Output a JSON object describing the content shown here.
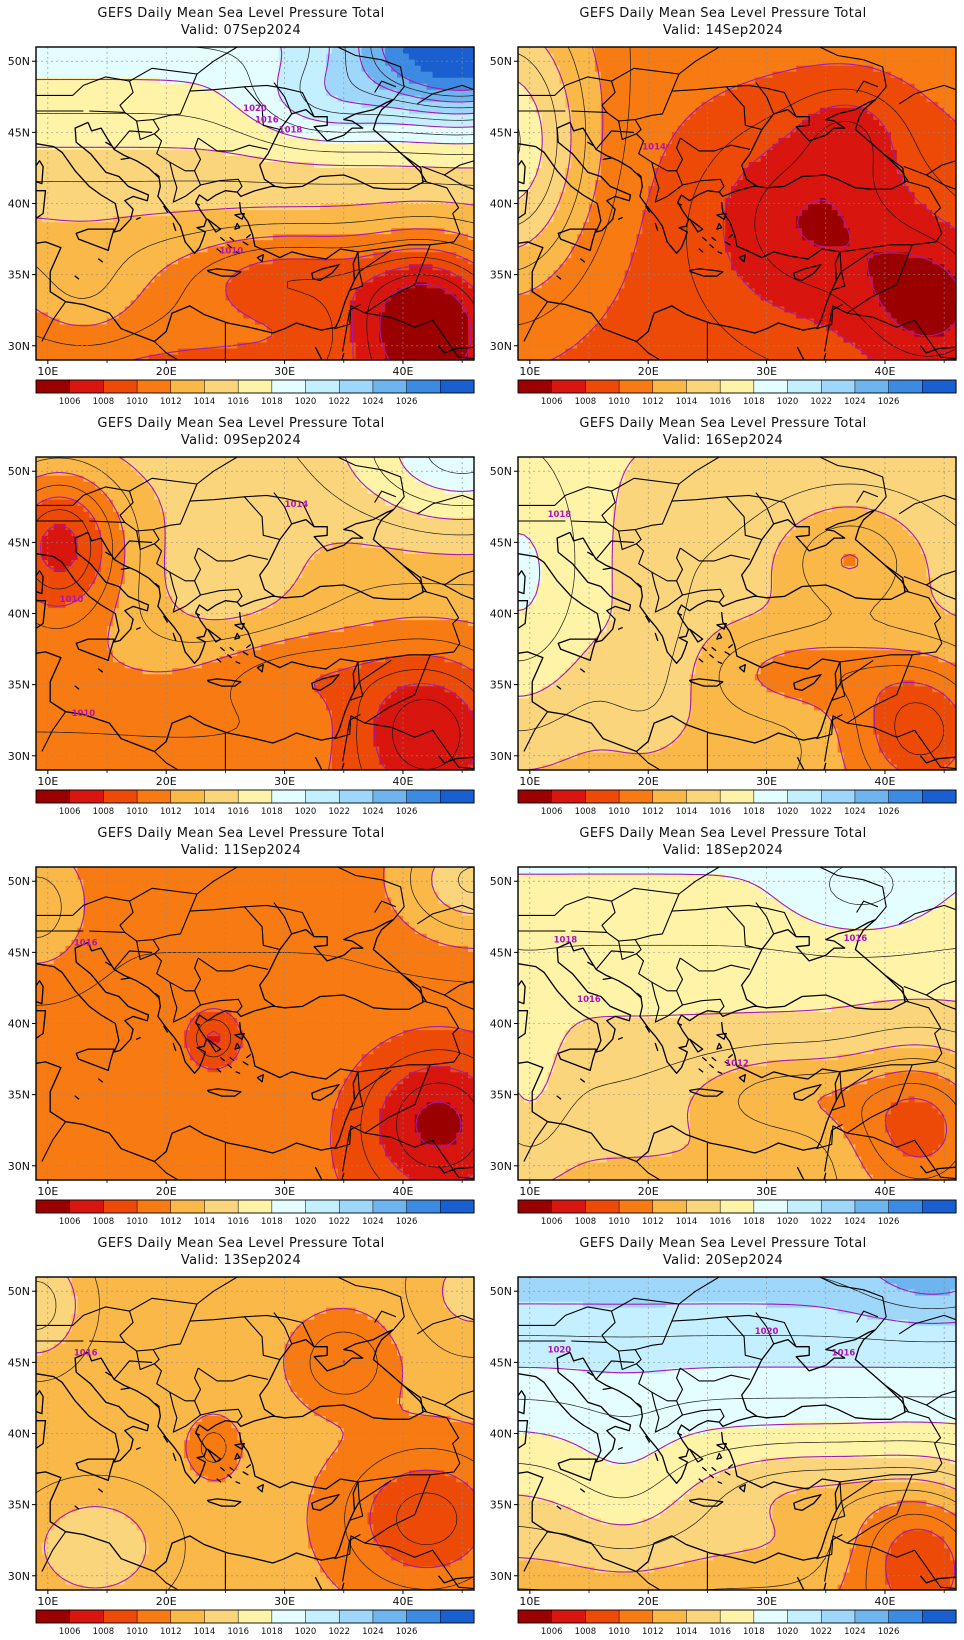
{
  "title_prefix": "GEFS Daily Mean Sea Level Pressure Total",
  "valid_prefix": "Valid:",
  "panels": [
    {
      "date": "07Sep2024",
      "scenario": "s07",
      "isobar_labels": [
        "1020",
        "1016",
        "1018",
        "1010"
      ]
    },
    {
      "date": "14Sep2024",
      "scenario": "s14",
      "isobar_labels": [
        "1014"
      ]
    },
    {
      "date": "09Sep2024",
      "scenario": "s09",
      "isobar_labels": [
        "1014",
        "1010",
        "1010"
      ]
    },
    {
      "date": "16Sep2024",
      "scenario": "s16",
      "isobar_labels": [
        "1018"
      ]
    },
    {
      "date": "11Sep2024",
      "scenario": "s11",
      "isobar_labels": [
        "1016"
      ]
    },
    {
      "date": "18Sep2024",
      "scenario": "s18",
      "isobar_labels": [
        "1018",
        "1016",
        "1016",
        "1012"
      ]
    },
    {
      "date": "13Sep2024",
      "scenario": "s13",
      "isobar_labels": [
        "1016"
      ]
    },
    {
      "date": "20Sep2024",
      "scenario": "s20",
      "isobar_labels": [
        "1020",
        "1020",
        "1016"
      ]
    }
  ],
  "lon_ticks": [
    "10E",
    "20E",
    "30E",
    "40E"
  ],
  "lat_ticks": [
    "50N",
    "45N",
    "40N",
    "35N",
    "30N"
  ],
  "colorbar": {
    "labels": [
      "1006",
      "1008",
      "1010",
      "1012",
      "1014",
      "1016",
      "1018",
      "1020",
      "1022",
      "1024",
      "1026"
    ],
    "colors": [
      "#9a0000",
      "#d8150e",
      "#ed4a08",
      "#f77a12",
      "#f9b848",
      "#fbd57c",
      "#fff3a8",
      "#e4fdff",
      "#c3efff",
      "#9fd7fa",
      "#6eb4ef",
      "#3d8ae2",
      "#1a5fd0"
    ]
  },
  "chart_data": [
    {
      "type": "heatmap",
      "title": "GEFS Daily Mean Sea Level Pressure Total",
      "subtitle": "Valid: 07Sep2024",
      "xlim": [
        9,
        46
      ],
      "ylim": [
        29,
        51
      ]
    },
    {
      "type": "heatmap",
      "title": "GEFS Daily Mean Sea Level Pressure Total",
      "subtitle": "Valid: 14Sep2024",
      "xlim": [
        9,
        46
      ],
      "ylim": [
        29,
        51
      ]
    },
    {
      "type": "heatmap",
      "title": "GEFS Daily Mean Sea Level Pressure Total",
      "subtitle": "Valid: 09Sep2024",
      "xlim": [
        9,
        46
      ],
      "ylim": [
        29,
        51
      ]
    },
    {
      "type": "heatmap",
      "title": "GEFS Daily Mean Sea Level Pressure Total",
      "subtitle": "Valid: 16Sep2024",
      "xlim": [
        9,
        46
      ],
      "ylim": [
        29,
        51
      ]
    },
    {
      "type": "heatmap",
      "title": "GEFS Daily Mean Sea Level Pressure Total",
      "subtitle": "Valid: 11Sep2024",
      "xlim": [
        9,
        46
      ],
      "ylim": [
        29,
        51
      ]
    },
    {
      "type": "heatmap",
      "title": "GEFS Daily Mean Sea Level Pressure Total",
      "subtitle": "Valid: 18Sep2024",
      "xlim": [
        9,
        46
      ],
      "ylim": [
        29,
        51
      ]
    },
    {
      "type": "heatmap",
      "title": "GEFS Daily Mean Sea Level Pressure Total",
      "subtitle": "Valid: 13Sep2024",
      "xlim": [
        9,
        46
      ],
      "ylim": [
        29,
        51
      ]
    },
    {
      "type": "heatmap",
      "title": "GEFS Daily Mean Sea Level Pressure Total",
      "subtitle": "Valid: 20Sep2024",
      "xlim": [
        9,
        46
      ],
      "ylim": [
        29,
        51
      ]
    }
  ]
}
